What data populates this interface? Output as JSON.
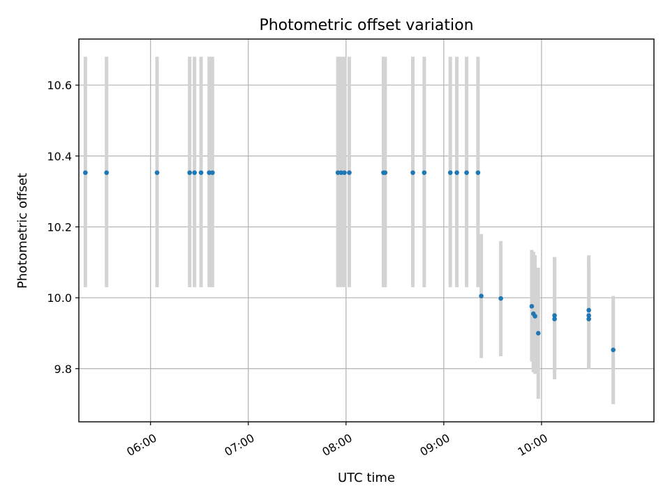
{
  "chart_data": {
    "type": "scatter",
    "title": "Photometric offset variation",
    "xlabel": "UTC time",
    "ylabel": "Photometric offset",
    "x_ticks": [
      "06:00",
      "07:00",
      "08:00",
      "09:00",
      "10:00"
    ],
    "y_ticks": [
      "9.8",
      "10.0",
      "10.2",
      "10.4",
      "10.6"
    ],
    "xlim": [
      "05:16",
      "11:09"
    ],
    "ylim": [
      9.65,
      10.73
    ],
    "grid": true,
    "colors": {
      "point": "#1f77b4",
      "errorbar": "#d3d3d3"
    },
    "series": [
      {
        "points": [
          {
            "x": "05:20",
            "y": 10.353,
            "err_low": 10.03,
            "err_high": 10.68
          },
          {
            "x": "05:33",
            "y": 10.353,
            "err_low": 10.03,
            "err_high": 10.68
          },
          {
            "x": "06:04",
            "y": 10.353,
            "err_low": 10.03,
            "err_high": 10.68
          },
          {
            "x": "06:24",
            "y": 10.353,
            "err_low": 10.03,
            "err_high": 10.68
          },
          {
            "x": "06:27",
            "y": 10.353,
            "err_low": 10.03,
            "err_high": 10.68
          },
          {
            "x": "06:31",
            "y": 10.353,
            "err_low": 10.03,
            "err_high": 10.68
          },
          {
            "x": "06:36",
            "y": 10.353,
            "err_low": 10.03,
            "err_high": 10.68
          },
          {
            "x": "06:38",
            "y": 10.353,
            "err_low": 10.03,
            "err_high": 10.68
          },
          {
            "x": "07:55",
            "y": 10.353,
            "err_low": 10.03,
            "err_high": 10.68
          },
          {
            "x": "07:57",
            "y": 10.353,
            "err_low": 10.03,
            "err_high": 10.68
          },
          {
            "x": "07:59",
            "y": 10.353,
            "err_low": 10.03,
            "err_high": 10.68
          },
          {
            "x": "08:02",
            "y": 10.353,
            "err_low": 10.03,
            "err_high": 10.68
          },
          {
            "x": "08:23",
            "y": 10.353,
            "err_low": 10.03,
            "err_high": 10.68
          },
          {
            "x": "08:24",
            "y": 10.353,
            "err_low": 10.03,
            "err_high": 10.68
          },
          {
            "x": "08:41",
            "y": 10.353,
            "err_low": 10.03,
            "err_high": 10.68
          },
          {
            "x": "08:48",
            "y": 10.353,
            "err_low": 10.03,
            "err_high": 10.68
          },
          {
            "x": "09:04",
            "y": 10.353,
            "err_low": 10.03,
            "err_high": 10.68
          },
          {
            "x": "09:08",
            "y": 10.353,
            "err_low": 10.03,
            "err_high": 10.68
          },
          {
            "x": "09:14",
            "y": 10.353,
            "err_low": 10.03,
            "err_high": 10.68
          },
          {
            "x": "09:21",
            "y": 10.353,
            "err_low": 10.03,
            "err_high": 10.68
          },
          {
            "x": "09:23",
            "y": 10.005,
            "err_low": 9.83,
            "err_high": 10.18
          },
          {
            "x": "09:35",
            "y": 9.998,
            "err_low": 9.835,
            "err_high": 10.16
          },
          {
            "x": "09:54",
            "y": 9.976,
            "err_low": 9.82,
            "err_high": 10.135
          },
          {
            "x": "09:55",
            "y": 9.955,
            "err_low": 9.79,
            "err_high": 10.13
          },
          {
            "x": "09:56",
            "y": 9.948,
            "err_low": 9.785,
            "err_high": 10.12
          },
          {
            "x": "09:58",
            "y": 9.9,
            "err_low": 9.715,
            "err_high": 10.085
          },
          {
            "x": "10:08",
            "y": 9.95,
            "err_low": 9.79,
            "err_high": 10.115
          },
          {
            "x": "10:08",
            "y": 9.94,
            "err_low": 9.77,
            "err_high": 10.11
          },
          {
            "x": "10:29",
            "y": 9.965,
            "err_low": 9.805,
            "err_high": 10.12
          },
          {
            "x": "10:29",
            "y": 9.95,
            "err_low": 9.8,
            "err_high": 10.1
          },
          {
            "x": "10:29",
            "y": 9.94,
            "err_low": 9.8,
            "err_high": 10.09
          },
          {
            "x": "10:44",
            "y": 9.853,
            "err_low": 9.7,
            "err_high": 10.005
          }
        ]
      }
    ]
  }
}
